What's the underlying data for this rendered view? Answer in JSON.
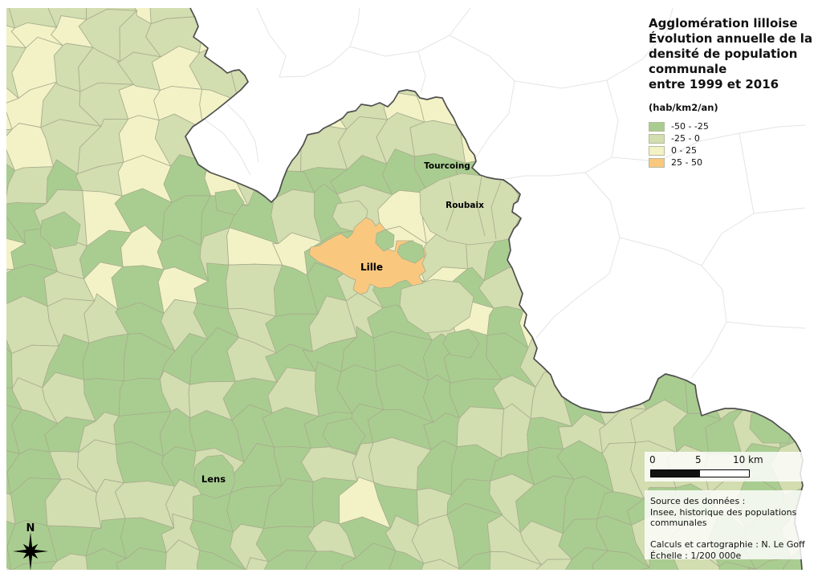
{
  "title": {
    "lines": [
      "Agglomération lilloise",
      "Évolution annuelle de la",
      "densité de population",
      "communale",
      "entre 1999 et 2016"
    ]
  },
  "legend": {
    "unit_label": "(hab/km2/an)",
    "items": [
      {
        "label": "-50 - -25",
        "color": "#a9cd90"
      },
      {
        "label": "-25 - 0",
        "color": "#d2ddb0"
      },
      {
        "label": "0 - 25",
        "color": "#f2f2c6"
      },
      {
        "label": "25 - 50",
        "color": "#f9c87e"
      }
    ]
  },
  "map": {
    "labels": [
      {
        "text": "Tourcoing"
      },
      {
        "text": "Roubaix"
      },
      {
        "text": "Lille"
      },
      {
        "text": "Lens"
      }
    ],
    "national_border_color": "#4f4f4f",
    "commune_border_color": "#a8ac8e",
    "foreign_border_color": "#e4e4e4"
  },
  "scalebar": {
    "ticks": [
      "0",
      "5",
      "10 km"
    ]
  },
  "source": {
    "lines": [
      "Source des données :",
      "Insee, historique des populations",
      "communales",
      "",
      "Calculs et cartographie : N. Le Goff",
      "Échelle : 1/200 000e"
    ]
  },
  "north": {
    "label": "N"
  }
}
